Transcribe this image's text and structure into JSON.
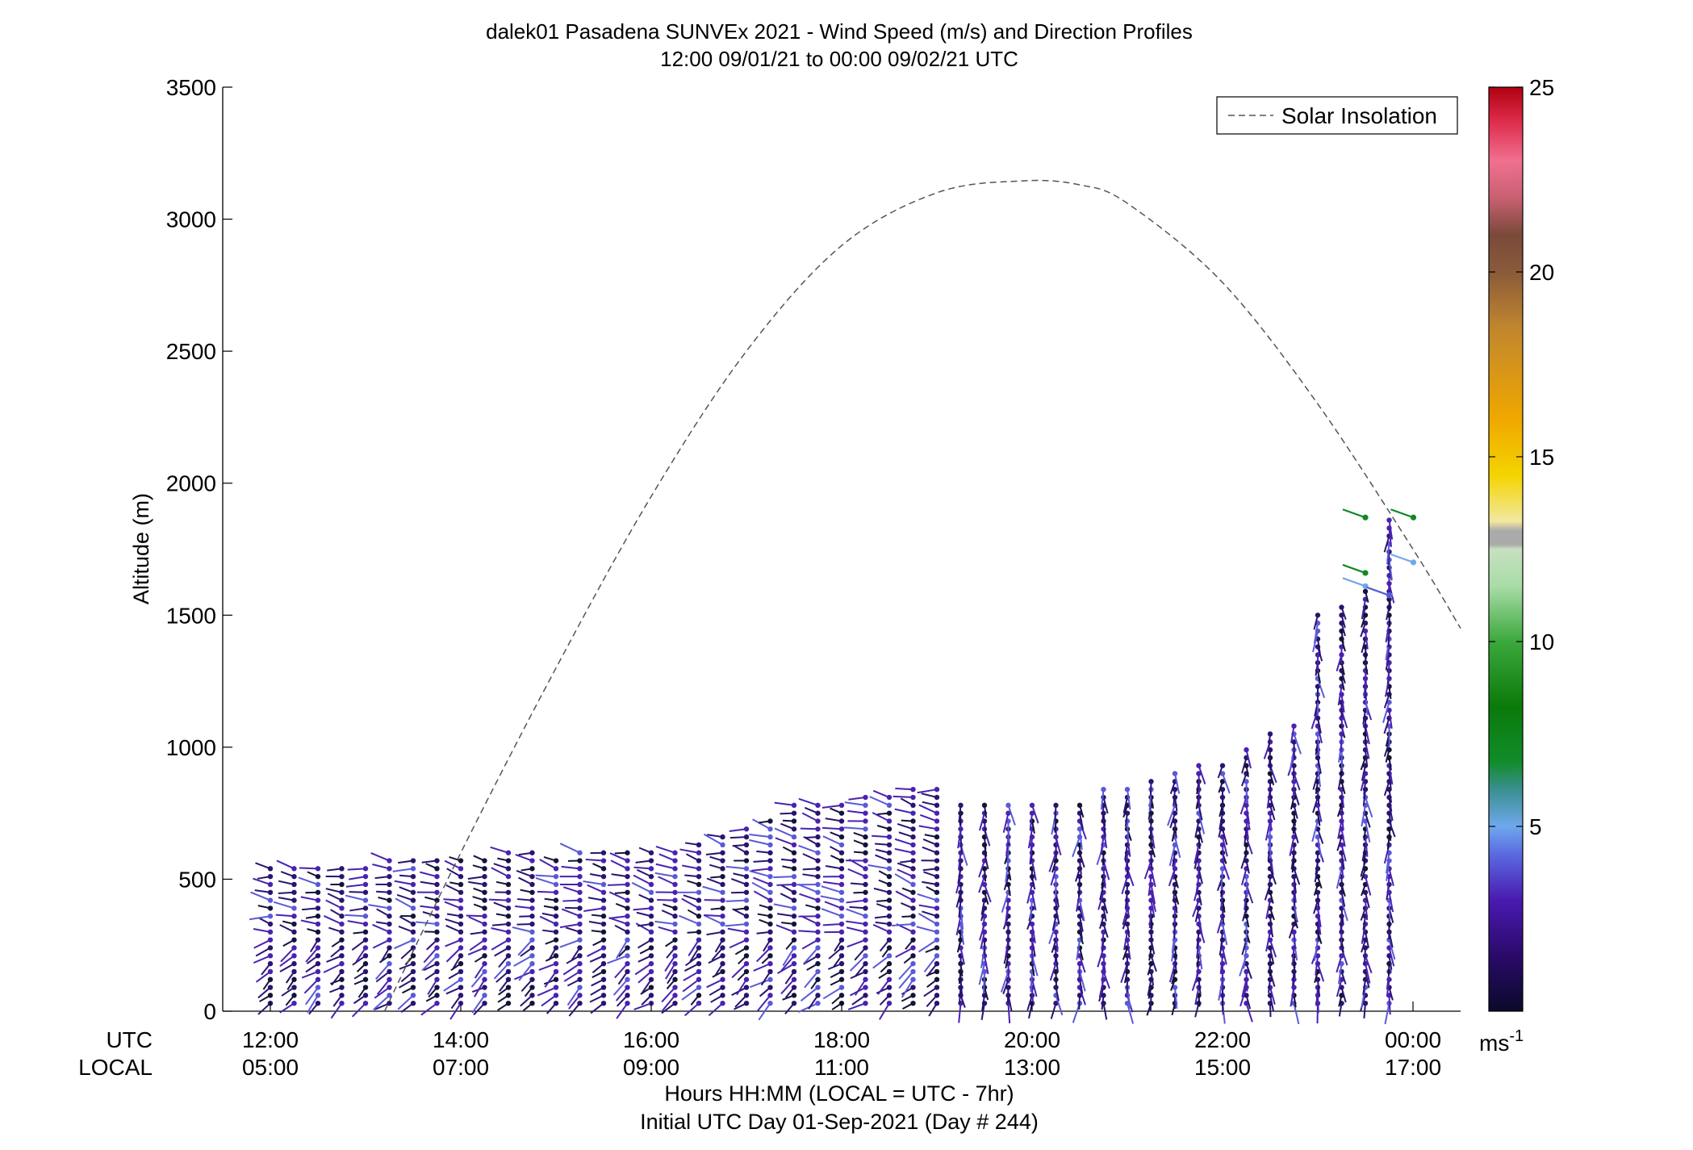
{
  "chart_data": {
    "type": "scatter",
    "title": "dalek01 Pasadena SUNVEx 2021 - Wind Speed (m/s) and Direction Profiles",
    "subtitle": "12:00 09/01/21 to 00:00 09/02/21  UTC",
    "ylabel": "Altitude (m)",
    "xlabel": "Hours HH:MM  (LOCAL = UTC - 7hr)",
    "xlabel2": "Initial UTC Day 01-Sep-2021 (Day # 244)",
    "xrow_labels": [
      "UTC",
      "LOCAL"
    ],
    "ylim": [
      0,
      3500
    ],
    "xlim_hours_utc": [
      11.5,
      24.5
    ],
    "y_ticks": [
      0,
      500,
      1000,
      1500,
      2000,
      2500,
      3000,
      3500
    ],
    "x_ticks_utc": [
      "12:00",
      "14:00",
      "16:00",
      "18:00",
      "20:00",
      "22:00",
      "00:00"
    ],
    "x_ticks_local": [
      "05:00",
      "07:00",
      "09:00",
      "11:00",
      "13:00",
      "15:00",
      "17:00"
    ],
    "legend": {
      "entries": [
        "Solar Insolation"
      ],
      "position": "top-right"
    },
    "colorbar": {
      "ticks": [
        5,
        10,
        15,
        20,
        25
      ],
      "range": [
        0,
        25
      ],
      "unit_label": "ms",
      "unit_exponent": "-1"
    },
    "solar_insolation": {
      "style": "dashed",
      "color": "#555555",
      "x_hours_utc": [
        13.2,
        14.0,
        15.0,
        16.0,
        17.0,
        18.0,
        19.0,
        19.9,
        20.5,
        21.0,
        22.0,
        23.0,
        24.0,
        24.5
      ],
      "y": [
        0,
        600,
        1300,
        1950,
        2500,
        2900,
        3100,
        3145,
        3130,
        3060,
        2760,
        2300,
        1750,
        1450
      ]
    },
    "wind_barbs_note": "dense field of wind vector sticks; per-profile max heights estimated",
    "profile_times_utc": [
      12.0,
      12.25,
      12.5,
      12.75,
      13.0,
      13.25,
      13.5,
      13.75,
      14.0,
      14.25,
      14.5,
      14.75,
      15.0,
      15.25,
      15.5,
      15.75,
      16.0,
      16.25,
      16.5,
      16.75,
      17.0,
      17.25,
      17.5,
      17.75,
      18.0,
      18.25,
      18.5,
      18.75,
      19.0,
      19.25,
      19.5,
      19.75,
      20.0,
      20.25,
      20.5,
      20.75,
      21.0,
      21.25,
      21.5,
      21.75,
      22.0,
      22.25,
      22.5,
      22.75,
      23.0,
      23.25,
      23.5,
      23.75
    ],
    "profile_top_altitude_m": [
      560,
      560,
      550,
      550,
      550,
      580,
      580,
      580,
      580,
      580,
      620,
      600,
      580,
      620,
      610,
      620,
      610,
      620,
      640,
      660,
      690,
      720,
      780,
      780,
      780,
      820,
      820,
      860,
      860,
      780,
      780,
      780,
      780,
      780,
      800,
      840,
      860,
      870,
      900,
      940,
      940,
      1000,
      1060,
      1100,
      1500,
      1550,
      1600,
      1870
    ],
    "barb_spacing_m": 30,
    "speed_range_ms": [
      0.5,
      9.5
    ],
    "high_speed_barbs": [
      {
        "t": 23.5,
        "z": 1870,
        "speed": 8.5
      },
      {
        "t": 23.75,
        "z": 1870,
        "speed": 8.0
      },
      {
        "t": 23.5,
        "z": 1660,
        "speed": 7.5
      },
      {
        "t": 23.75,
        "z": 1700,
        "speed": 4.2
      },
      {
        "t": 23.5,
        "z": 1610,
        "speed": 4.0
      },
      {
        "t": 23.5,
        "z": 1575,
        "speed": 3.8
      },
      {
        "t": 23.75,
        "z": 1575,
        "speed": 3.6
      }
    ]
  }
}
